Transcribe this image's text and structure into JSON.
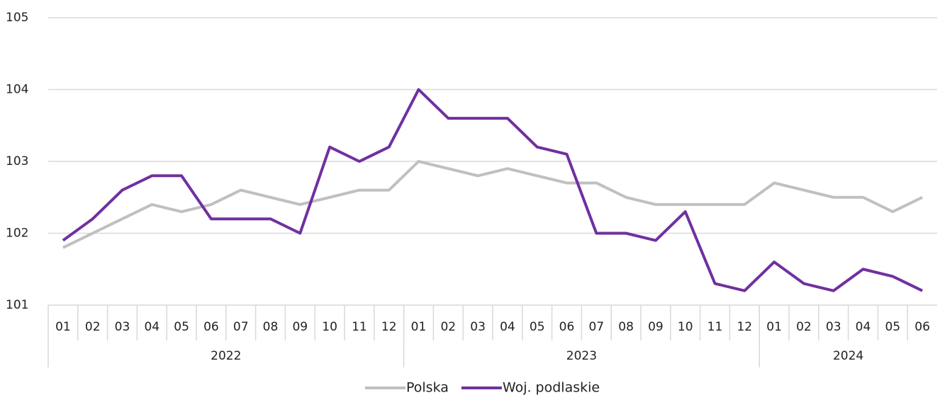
{
  "chart_data": {
    "type": "line",
    "categories": [
      "01",
      "02",
      "03",
      "04",
      "05",
      "06",
      "07",
      "08",
      "09",
      "10",
      "11",
      "12",
      "01",
      "02",
      "03",
      "04",
      "05",
      "06",
      "07",
      "08",
      "09",
      "10",
      "11",
      "12",
      "01",
      "02",
      "03",
      "04",
      "05",
      "06"
    ],
    "x_groups": [
      {
        "label": "2022",
        "span": 12
      },
      {
        "label": "2023",
        "span": 12
      },
      {
        "label": "2024",
        "span": 6
      }
    ],
    "series": [
      {
        "name": "Polska",
        "color": "#c0c0c0",
        "values": [
          101.8,
          102.0,
          102.2,
          102.4,
          102.3,
          102.4,
          102.6,
          102.5,
          102.4,
          102.5,
          102.6,
          102.6,
          103.0,
          102.9,
          102.8,
          102.9,
          102.8,
          102.7,
          102.7,
          102.5,
          102.4,
          102.4,
          102.4,
          102.4,
          102.7,
          102.6,
          102.5,
          102.5,
          102.3,
          102.5
        ]
      },
      {
        "name": "Woj. podlaskie",
        "color": "#7030a0",
        "values": [
          101.9,
          102.2,
          102.6,
          102.8,
          102.8,
          102.2,
          102.2,
          102.2,
          102.0,
          103.2,
          103.0,
          103.2,
          104.0,
          103.6,
          103.6,
          103.6,
          103.2,
          103.1,
          102.0,
          102.0,
          101.9,
          102.3,
          101.3,
          101.2,
          101.6,
          101.3,
          101.2,
          101.5,
          101.4,
          101.2
        ]
      }
    ],
    "ylim": [
      101,
      105
    ],
    "yticks": [
      101,
      102,
      103,
      104,
      105
    ],
    "grid": true,
    "legend": "bottom"
  }
}
